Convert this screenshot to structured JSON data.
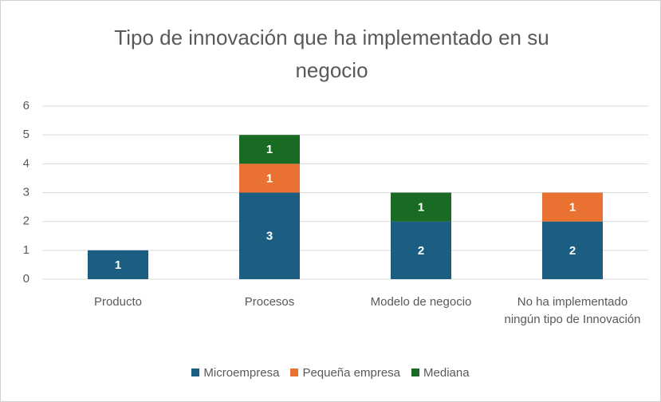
{
  "chart_data": {
    "type": "stacked_bar",
    "title": "Tipo de innovación que ha implementado en su negocio",
    "categories": [
      "Producto",
      "Procesos",
      "Modelo de negocio",
      "No ha implementado ningún tipo de Innovación"
    ],
    "series": [
      {
        "name": "Microempresa",
        "color": "#1b5e82",
        "values": [
          1,
          3,
          2,
          2
        ]
      },
      {
        "name": "Pequeña empresa",
        "color": "#e97132",
        "values": [
          null,
          1,
          null,
          1
        ]
      },
      {
        "name": "Mediana",
        "color": "#196b24",
        "values": [
          null,
          1,
          1,
          null
        ]
      }
    ],
    "ylim": [
      0,
      6
    ],
    "yticks": [
      0,
      1,
      2,
      3,
      4,
      5,
      6
    ],
    "grid": true,
    "legend": "bottom"
  }
}
